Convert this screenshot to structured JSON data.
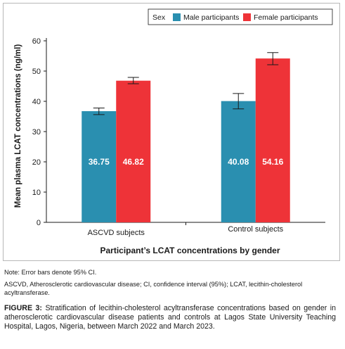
{
  "chart_data": {
    "type": "bar",
    "categories": [
      "ASCVD subjects",
      "Control subjects"
    ],
    "series": [
      {
        "name": "Male participants",
        "color": "#2a8fb0",
        "values": [
          36.75,
          40.08
        ],
        "error_low": [
          35.6,
          37.5
        ],
        "error_high": [
          37.8,
          42.6
        ],
        "labels": [
          "36.75",
          "40.08"
        ]
      },
      {
        "name": "Female participants",
        "color": "#ee3338",
        "values": [
          46.82,
          54.16
        ],
        "error_low": [
          45.8,
          52.1
        ],
        "error_high": [
          47.9,
          56.1
        ],
        "labels": [
          "46.82",
          "54.16"
        ]
      }
    ],
    "ylabel": "Mean plasma LCAT concentrations (ng/ml)",
    "xlabel": "Participant’s LCAT concentrations by gender",
    "legend_title": "Sex",
    "legend_position": "top-right",
    "ylim": [
      0,
      60
    ],
    "yticks": [
      "0",
      "10",
      "20",
      "30",
      "40",
      "50",
      "60"
    ],
    "grid": false
  },
  "notes": {
    "error_note": "Note: Error bars denote 95% CI.",
    "abbreviations": "ASCVD, Atherosclerotic cardiovascular disease; CI, confidence interval (95%); LCAT, lecithin-cholesterol acyltransferase."
  },
  "caption": {
    "label": "FIGURE 3:",
    "text": "Stratification of lecithin-cholesterol acyltransferase concentrations based on gender in atherosclerotic cardiovascular disease patients and controls at Lagos State University Teaching Hospital, Lagos, Nigeria, between March 2022 and March 2023."
  }
}
